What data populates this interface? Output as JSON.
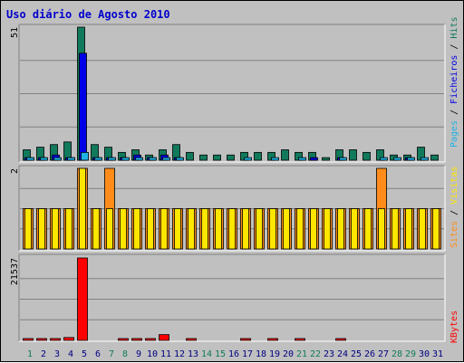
{
  "title": "Uso diário de Agosto 2010",
  "colors": {
    "hits": "#127a5c",
    "files": "#0000e6",
    "pages": "#1fb2e6",
    "visits": "#ffe600",
    "sites": "#ff8c1a",
    "kbytes": "#ff0000",
    "title": "#0000cc",
    "weekend_label": "#127a5c",
    "weekday_label": "#000080"
  },
  "days": [
    {
      "label": "1",
      "weekend": true
    },
    {
      "label": "2",
      "weekend": false
    },
    {
      "label": "3",
      "weekend": false
    },
    {
      "label": "4",
      "weekend": false
    },
    {
      "label": "5",
      "weekend": false
    },
    {
      "label": "6",
      "weekend": false
    },
    {
      "label": "7",
      "weekend": true
    },
    {
      "label": "8",
      "weekend": true
    },
    {
      "label": "9",
      "weekend": false
    },
    {
      "label": "10",
      "weekend": false
    },
    {
      "label": "11",
      "weekend": false
    },
    {
      "label": "12",
      "weekend": false
    },
    {
      "label": "13",
      "weekend": false
    },
    {
      "label": "14",
      "weekend": true
    },
    {
      "label": "15",
      "weekend": true
    },
    {
      "label": "16",
      "weekend": false
    },
    {
      "label": "17",
      "weekend": false
    },
    {
      "label": "18",
      "weekend": false
    },
    {
      "label": "19",
      "weekend": false
    },
    {
      "label": "20",
      "weekend": false
    },
    {
      "label": "21",
      "weekend": true
    },
    {
      "label": "22",
      "weekend": true
    },
    {
      "label": "23",
      "weekend": false
    },
    {
      "label": "24",
      "weekend": false
    },
    {
      "label": "25",
      "weekend": false
    },
    {
      "label": "26",
      "weekend": false
    },
    {
      "label": "27",
      "weekend": false
    },
    {
      "label": "28",
      "weekend": true
    },
    {
      "label": "29",
      "weekend": true
    },
    {
      "label": "30",
      "weekend": false
    },
    {
      "label": "31",
      "weekend": false
    }
  ],
  "chart_data": [
    {
      "type": "bar",
      "panel": "hits",
      "max_label": "51",
      "ylim": [
        0,
        51
      ],
      "legend_labels": [
        "Pages",
        "Ficheiros",
        "Hits"
      ],
      "series": [
        {
          "name": "Hits",
          "values": [
            4,
            5,
            6,
            7,
            51,
            6,
            5,
            3,
            4,
            2,
            4,
            6,
            3,
            2,
            2,
            2,
            3,
            3,
            3,
            4,
            3,
            3,
            1,
            4,
            4,
            3,
            4,
            2,
            2,
            5,
            2
          ]
        },
        {
          "name": "Ficheiros",
          "values": [
            1,
            1,
            2,
            1,
            41,
            1,
            1,
            1,
            2,
            1,
            2,
            1,
            0,
            0,
            0,
            0,
            0,
            0,
            0,
            0,
            0,
            1,
            0,
            1,
            0,
            0,
            0,
            0,
            1,
            0,
            0
          ]
        },
        {
          "name": "Pages",
          "values": [
            1,
            1,
            1,
            1,
            3,
            1,
            1,
            1,
            1,
            1,
            1,
            1,
            0,
            0,
            0,
            0,
            1,
            0,
            1,
            0,
            1,
            0,
            0,
            1,
            0,
            0,
            1,
            1,
            1,
            1,
            0
          ]
        }
      ]
    },
    {
      "type": "bar",
      "panel": "visits",
      "max_label": "2",
      "ylim": [
        0,
        2
      ],
      "legend_labels": [
        "Sites",
        "Visitas"
      ],
      "series": [
        {
          "name": "Visitas",
          "values": [
            1,
            1,
            1,
            1,
            2,
            1,
            1,
            1,
            1,
            1,
            1,
            1,
            1,
            1,
            1,
            1,
            1,
            1,
            1,
            1,
            1,
            1,
            1,
            1,
            1,
            1,
            1,
            1,
            1,
            1,
            1
          ]
        },
        {
          "name": "Sites",
          "values": [
            1,
            1,
            1,
            1,
            2,
            1,
            2,
            1,
            1,
            1,
            1,
            1,
            1,
            1,
            1,
            1,
            1,
            1,
            1,
            1,
            1,
            1,
            1,
            1,
            1,
            1,
            2,
            1,
            1,
            1,
            1
          ]
        }
      ]
    },
    {
      "type": "bar",
      "panel": "kbytes",
      "max_label": "21537",
      "ylim": [
        0,
        21537
      ],
      "legend_labels": [
        "KBytes"
      ],
      "series": [
        {
          "name": "KBytes",
          "values": [
            150,
            150,
            450,
            750,
            21537,
            0,
            0,
            150,
            150,
            150,
            1500,
            0,
            150,
            0,
            0,
            0,
            150,
            0,
            150,
            0,
            150,
            0,
            0,
            150,
            0,
            0,
            0,
            0,
            0,
            0,
            0
          ]
        }
      ]
    }
  ]
}
